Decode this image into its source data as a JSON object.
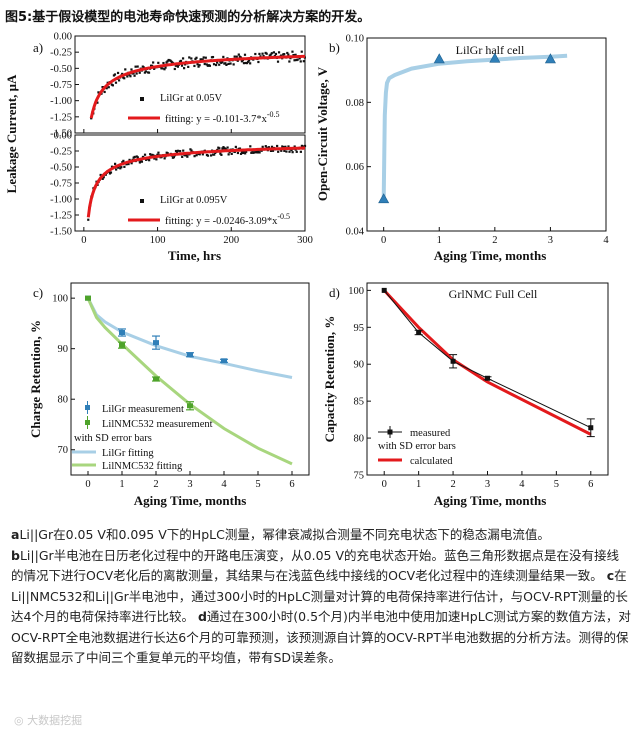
{
  "title": "图5:基于假设模型的电池寿命快速预测的分析解决方案的开发。",
  "caption": [
    {
      "label": "a",
      "text": "Li||Gr在0.05 V和0.095 V下的HpLC测量，幂律衰减拟合测量不同充电状态下的稳态漏电流值。"
    },
    {
      "label": "b",
      "text": "Li||Gr半电池在日历老化过程中的开路电压演变，从0.05 V的充电状态开始。蓝色三角形数据点是在没有接线的情况下进行OCV老化后的离散测量，其结果与在浅蓝色线中接线的OCV老化过程中的连续测量结果一致。"
    },
    {
      "label": "c",
      "text": "在Li||NMC532和Li||Gr半电池中，通过300小时的HpLC测量对计算的电荷保持率进行估计，与OCV-RPT测量的长达4个月的电荷保持率进行比较。"
    },
    {
      "label": "d",
      "text": "通过在300小时(0.5个月)内半电池中使用加速HpLC测试方案的数值方法，对OCV-RPT全电池数据进行长达6个月的可靠预测，该预测源自计算的OCV-RPT半电池数据的分析方法。测得的保留数据显示了中间三个重复单元的平均值，带有SD误差条。"
    }
  ],
  "watermark": "大数据挖掘",
  "colors": {
    "blue_line": "#a8cfe6",
    "blue_marker": "#2f7fb8",
    "green_line": "#a8d67e",
    "green_marker": "#4ea32a",
    "red": "#e31a1c"
  },
  "chart_data": [
    {
      "id": "a",
      "type": "scatter",
      "panel_label": "a)",
      "ylabel": "Leakage Current, μA",
      "xlabel": "Time, hrs",
      "xlim": [
        0,
        300
      ],
      "xticks": [
        0,
        100,
        200,
        300
      ],
      "subplots": [
        {
          "ylim": [
            -1.5,
            0.0
          ],
          "yticks": [
            0.0,
            -0.25,
            -0.5,
            -0.75,
            -1.0,
            -1.25,
            -1.5
          ],
          "series": [
            {
              "name": "LilGr at 0.05V",
              "kind": "measurement",
              "t_start": 10,
              "t_end": 300,
              "noise": 0.08,
              "x": [
                10,
                20,
                40,
                60,
                100,
                150,
                200,
                250,
                300
              ],
              "y": [
                -1.27,
                -0.93,
                -0.69,
                -0.58,
                -0.47,
                -0.4,
                -0.36,
                -0.34,
                -0.32
              ]
            },
            {
              "name": "fitting: y = -0.101-3.7*x^-0.5",
              "kind": "fit",
              "a": -0.101,
              "b": -3.7,
              "n": -0.5
            }
          ],
          "legend": [
            "LilGr at 0.05V",
            "fitting: y = -0.101-3.7*x"
          ],
          "legend_exp": "-0.5"
        },
        {
          "ylim": [
            -1.5,
            0.0
          ],
          "yticks": [
            0.0,
            -0.25,
            -0.5,
            -0.75,
            -1.0,
            -1.25,
            -1.5
          ],
          "series": [
            {
              "name": "LilGr at 0.095V",
              "kind": "measurement",
              "t_start": 6,
              "t_end": 300,
              "noise": 0.06,
              "x": [
                6,
                10,
                20,
                40,
                60,
                100,
                150,
                200,
                250,
                300
              ],
              "y": [
                -1.29,
                -1.0,
                -0.72,
                -0.51,
                -0.42,
                -0.33,
                -0.28,
                -0.24,
                -0.22,
                -0.2
              ]
            },
            {
              "name": "fitting: y = -0.0246-3.09*x^-0.5",
              "kind": "fit",
              "a": -0.0246,
              "b": -3.09,
              "n": -0.5
            }
          ],
          "legend": [
            "LilGr at 0.095V",
            "fitting: y = -0.0246-3.09*x"
          ],
          "legend_exp": "-0.5"
        }
      ]
    },
    {
      "id": "b",
      "type": "line",
      "panel_label": "b)",
      "title": "LilGr half cell",
      "xlabel": "Aging Time, months",
      "ylabel": "Open-Circuit Voltage, V",
      "xlim": [
        -0.3,
        4
      ],
      "ylim": [
        0.04,
        0.1
      ],
      "xticks": [
        0,
        1,
        2,
        3,
        4
      ],
      "yticks": [
        0.04,
        0.06,
        0.08,
        0.1
      ],
      "series": [
        {
          "name": "continuous OCV",
          "kind": "line",
          "x": [
            0,
            0.02,
            0.04,
            0.06,
            0.1,
            0.2,
            0.5,
            1,
            1.5,
            2,
            2.5,
            3,
            3.3
          ],
          "y": [
            0.05,
            0.076,
            0.083,
            0.086,
            0.0875,
            0.0885,
            0.0905,
            0.092,
            0.0928,
            0.0933,
            0.0938,
            0.0942,
            0.0945
          ]
        },
        {
          "name": "discrete OCV",
          "kind": "triangle",
          "x": [
            0,
            1,
            2,
            3
          ],
          "y": [
            0.05,
            0.0935,
            0.0937,
            0.0935
          ]
        }
      ]
    },
    {
      "id": "c",
      "type": "line",
      "panel_label": "c)",
      "xlabel": "Aging Time, months",
      "ylabel": "Charge Retention, %",
      "xlim": [
        -0.5,
        6.5
      ],
      "ylim": [
        65,
        103
      ],
      "xticks": [
        0,
        1,
        2,
        3,
        4,
        5,
        6
      ],
      "yticks": [
        70,
        80,
        90,
        100
      ],
      "series": [
        {
          "name": "LilGr measurement",
          "kind": "errorbar",
          "x": [
            0,
            1,
            2,
            3,
            4
          ],
          "y": [
            100,
            93.2,
            91.2,
            88.8,
            87.6
          ],
          "err": [
            0,
            0.7,
            1.3,
            0.4,
            0.3
          ]
        },
        {
          "name": "LilNMC532 measurement",
          "kind": "errorbar",
          "x": [
            0,
            1,
            2,
            3
          ],
          "y": [
            100,
            90.7,
            84.0,
            78.7
          ],
          "err": [
            0,
            0.6,
            0.4,
            0.8
          ]
        },
        {
          "name": "LilGr fitting",
          "kind": "line",
          "x": [
            0,
            0.25,
            0.5,
            1,
            2,
            3,
            4,
            5,
            6
          ],
          "y": [
            100,
            96.7,
            95.3,
            93.3,
            90.6,
            88.5,
            87.1,
            85.6,
            84.3
          ]
        },
        {
          "name": "LilNMC532 fitting",
          "kind": "line",
          "x": [
            0,
            0.25,
            0.5,
            1,
            2,
            3,
            4,
            5,
            6
          ],
          "y": [
            100,
            96.2,
            94.2,
            90.9,
            84.6,
            79.0,
            74.2,
            70.3,
            67.2
          ]
        }
      ],
      "legend": [
        "LilGr measurement",
        "LilNMC532 measurement",
        "with SD error bars",
        "LilGr fitting",
        "LilNMC532 fitting"
      ]
    },
    {
      "id": "d",
      "type": "line",
      "panel_label": "d)",
      "title": "GrlNMC Full Cell",
      "xlabel": "Aging Time, months",
      "ylabel": "Capacity Retention, %",
      "xlim": [
        -0.5,
        6.5
      ],
      "ylim": [
        75,
        101
      ],
      "xticks": [
        0,
        1,
        2,
        3,
        4,
        5,
        6
      ],
      "yticks": [
        75,
        80,
        85,
        90,
        95,
        100
      ],
      "series": [
        {
          "name": "measured",
          "kind": "errorbar",
          "x": [
            0,
            1,
            2,
            3,
            6
          ],
          "y": [
            100,
            94.3,
            90.4,
            88.1,
            81.4
          ],
          "err": [
            0,
            0.3,
            0.9,
            0.2,
            1.2
          ]
        },
        {
          "name": "calculated",
          "kind": "line",
          "x": [
            0,
            1,
            2,
            3,
            6
          ],
          "y": [
            100,
            95.0,
            90.6,
            87.6,
            80.5
          ]
        }
      ],
      "legend": [
        "measured",
        "with SD error bars",
        "calculated"
      ]
    }
  ]
}
